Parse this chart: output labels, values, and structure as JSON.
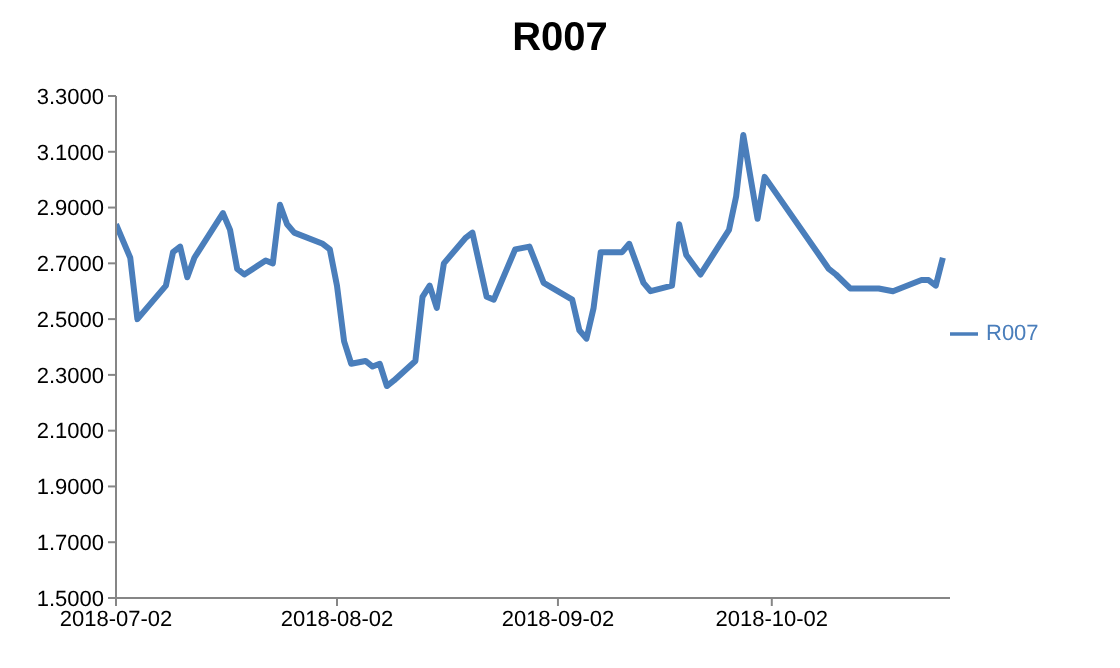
{
  "chart_data": {
    "type": "line",
    "title": "R007",
    "legend": "right",
    "marker": "none",
    "line_style": "solid",
    "grid": false,
    "x": [
      "2018-07-02",
      "2018-07-04",
      "2018-07-05",
      "2018-07-09",
      "2018-07-10",
      "2018-07-11",
      "2018-07-12",
      "2018-07-13",
      "2018-07-17",
      "2018-07-18",
      "2018-07-19",
      "2018-07-20",
      "2018-07-23",
      "2018-07-24",
      "2018-07-25",
      "2018-07-26",
      "2018-07-27",
      "2018-07-31",
      "2018-08-01",
      "2018-08-02",
      "2018-08-03",
      "2018-08-04",
      "2018-08-06",
      "2018-08-07",
      "2018-08-08",
      "2018-08-09",
      "2018-08-10",
      "2018-08-13",
      "2018-08-14",
      "2018-08-15",
      "2018-08-16",
      "2018-08-17",
      "2018-08-20",
      "2018-08-21",
      "2018-08-23",
      "2018-08-24",
      "2018-08-27",
      "2018-08-29",
      "2018-08-31",
      "2018-09-04",
      "2018-09-05",
      "2018-09-06",
      "2018-09-07",
      "2018-09-08",
      "2018-09-11",
      "2018-09-12",
      "2018-09-14",
      "2018-09-15",
      "2018-09-18",
      "2018-09-19",
      "2018-09-20",
      "2018-09-22",
      "2018-09-26",
      "2018-09-27",
      "2018-09-28",
      "2018-09-30",
      "2018-10-01",
      "2018-10-10",
      "2018-10-11",
      "2018-10-13",
      "2018-10-17",
      "2018-10-19",
      "2018-10-23",
      "2018-10-24",
      "2018-10-25",
      "2018-10-26"
    ],
    "series": [
      {
        "name": "R007",
        "color": "#4a7ebb",
        "values": [
          2.84,
          2.72,
          2.5,
          2.62,
          2.74,
          2.76,
          2.65,
          2.72,
          2.88,
          2.82,
          2.68,
          2.66,
          2.71,
          2.7,
          2.91,
          2.84,
          2.81,
          2.77,
          2.75,
          2.62,
          2.42,
          2.34,
          2.35,
          2.33,
          2.34,
          2.26,
          2.28,
          2.35,
          2.58,
          2.62,
          2.54,
          2.7,
          2.79,
          2.81,
          2.58,
          2.57,
          2.75,
          2.76,
          2.63,
          2.57,
          2.46,
          2.43,
          2.54,
          2.74,
          2.74,
          2.77,
          2.63,
          2.6,
          2.62,
          2.84,
          2.73,
          2.66,
          2.82,
          2.94,
          3.16,
          2.86,
          3.01,
          2.68,
          2.66,
          2.61,
          2.61,
          2.6,
          2.64,
          2.64,
          2.62,
          2.72
        ]
      }
    ],
    "xlim": [
      "2018-07-02",
      "2018-10-27"
    ],
    "xticks": [
      "2018-07-02",
      "2018-08-02",
      "2018-09-02",
      "2018-10-02"
    ],
    "ylim": [
      1.5,
      3.3
    ],
    "yticks": [
      {
        "value": 1.5,
        "label": "1.5000"
      },
      {
        "value": 1.7,
        "label": "1.7000"
      },
      {
        "value": 1.9,
        "label": "1.9000"
      },
      {
        "value": 2.1,
        "label": "2.1000"
      },
      {
        "value": 2.3,
        "label": "2.3000"
      },
      {
        "value": 2.5,
        "label": "2.5000"
      },
      {
        "value": 2.7,
        "label": "2.7000"
      },
      {
        "value": 2.9,
        "label": "2.9000"
      },
      {
        "value": 3.1,
        "label": "3.1000"
      },
      {
        "value": 3.3,
        "label": "3.3000"
      }
    ]
  }
}
